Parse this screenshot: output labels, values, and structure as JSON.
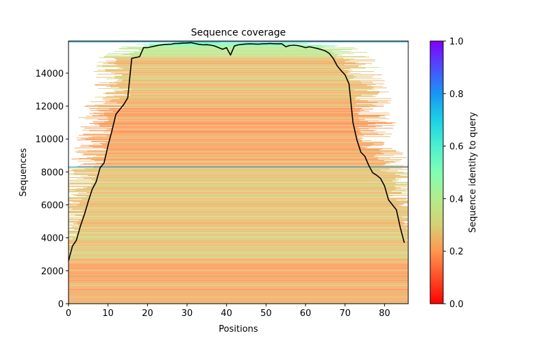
{
  "chart_data": {
    "type": "heatmap",
    "title": "Sequence coverage",
    "xlabel": "Positions",
    "ylabel": "Sequences",
    "xlim": [
      0,
      86
    ],
    "ylim": [
      0,
      15950
    ],
    "xticks": [
      0,
      10,
      20,
      30,
      40,
      50,
      60,
      70,
      80
    ],
    "xtick_labels": [
      "0",
      "10",
      "20",
      "30",
      "40",
      "50",
      "60",
      "70",
      "80"
    ],
    "yticks": [
      0,
      2000,
      4000,
      6000,
      8000,
      10000,
      12000,
      14000
    ],
    "ytick_labels": [
      "0",
      "2000",
      "4000",
      "6000",
      "8000",
      "10000",
      "12000",
      "14000"
    ],
    "colorbar": {
      "label": "Sequence identity to query",
      "range": [
        0,
        1
      ],
      "ticks": [
        0,
        0.2,
        0.4,
        0.6,
        0.8,
        1.0
      ],
      "tick_labels": [
        "0.0",
        "0.2",
        "0.4",
        "0.6",
        "0.8",
        "1.0"
      ],
      "colormap": "rainbow_r"
    },
    "coverage_line": {
      "name": "coverage",
      "color": "#000000",
      "x": [
        0,
        1,
        2,
        3,
        4,
        5,
        6,
        7,
        8,
        9,
        10,
        11,
        12,
        13,
        14,
        15,
        16,
        17,
        18,
        19,
        20,
        21,
        22,
        23,
        24,
        25,
        26,
        27,
        28,
        29,
        30,
        31,
        32,
        33,
        34,
        35,
        36,
        37,
        38,
        39,
        40,
        41,
        42,
        43,
        44,
        45,
        46,
        47,
        48,
        49,
        50,
        51,
        52,
        53,
        54,
        55,
        56,
        57,
        58,
        59,
        60,
        61,
        62,
        63,
        64,
        65,
        66,
        67,
        68,
        69,
        70,
        71,
        72,
        73,
        74,
        75,
        76,
        77,
        78,
        79,
        80,
        81,
        82,
        83,
        84,
        85
      ],
      "y": [
        2600,
        3500,
        3850,
        4700,
        5400,
        6200,
        6950,
        7400,
        8250,
        8550,
        9600,
        10500,
        11500,
        11800,
        12100,
        12500,
        14900,
        14950,
        15000,
        15550,
        15550,
        15600,
        15650,
        15700,
        15730,
        15750,
        15760,
        15800,
        15800,
        15820,
        15830,
        15850,
        15800,
        15750,
        15720,
        15730,
        15700,
        15650,
        15550,
        15450,
        15550,
        15100,
        15650,
        15720,
        15750,
        15770,
        15780,
        15770,
        15760,
        15780,
        15790,
        15800,
        15790,
        15780,
        15790,
        15600,
        15680,
        15700,
        15680,
        15620,
        15550,
        15600,
        15550,
        15500,
        15430,
        15350,
        15200,
        14900,
        14450,
        14150,
        13900,
        13350,
        11000,
        9950,
        9200,
        8950,
        8400,
        7950,
        7800,
        7600,
        7150,
        6300,
        6000,
        5700,
        4600,
        3700
      ]
    },
    "background_bands": [
      {
        "from": 0,
        "to": 2700,
        "identity": 0.22
      },
      {
        "from": 2700,
        "to": 8300,
        "identity": 0.27
      },
      {
        "from": 8300,
        "to": 12500,
        "identity": 0.22
      },
      {
        "from": 12500,
        "to": 15000,
        "identity": 0.26
      },
      {
        "from": 15000,
        "to": 15600,
        "identity": 0.38
      },
      {
        "from": 15600,
        "to": 15950,
        "identity": 0.5
      }
    ],
    "separator_lines": [
      {
        "y": 8300,
        "color": "#1f9ad6"
      },
      {
        "y": 15900,
        "color": "#1f9ad6"
      }
    ]
  }
}
